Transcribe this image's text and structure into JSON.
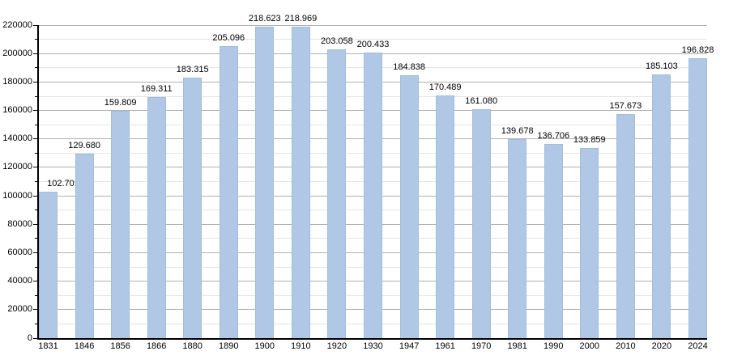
{
  "chart_data": {
    "type": "bar",
    "title": "",
    "xlabel": "",
    "ylabel": "",
    "categories": [
      "1831",
      "1846",
      "1856",
      "1866",
      "1880",
      "1890",
      "1900",
      "1910",
      "1920",
      "1930",
      "1947",
      "1961",
      "1970",
      "1981",
      "1990",
      "2000",
      "2010",
      "2020",
      "2024"
    ],
    "values": [
      102701,
      129680,
      159809,
      169311,
      183315,
      205096,
      218623,
      218969,
      203058,
      200433,
      184838,
      170489,
      161080,
      139678,
      136706,
      133859,
      157673,
      185103,
      196828
    ],
    "bar_labels": [
      "102.701",
      "129.680",
      "159.809",
      "169.311",
      "183.315",
      "205.096",
      "218.623",
      "218.969",
      "203.058",
      "200.433",
      "184.838",
      "170.489",
      "161.080",
      "139.678",
      "136.706",
      "133.859",
      "157.673",
      "185.103",
      "196.828"
    ],
    "ylim": [
      0,
      220000
    ],
    "y_major_step": 20000,
    "y_minor_step": 10000,
    "y_tick_labels": [
      "0",
      "20000",
      "40000",
      "60000",
      "80000",
      "100000",
      "120000",
      "140000",
      "160000",
      "180000",
      "200000",
      "220000"
    ],
    "grid": "horizontal-major-and-minor",
    "legend": "none",
    "colors": {
      "bar_fill": "#b0c8e6",
      "bar_border": "#a2bcdc",
      "major_grid": "#b0b0b0",
      "minor_grid": "#e4e4e4",
      "axis": "#000000",
      "text": "#000000",
      "background": "#ffffff"
    }
  }
}
